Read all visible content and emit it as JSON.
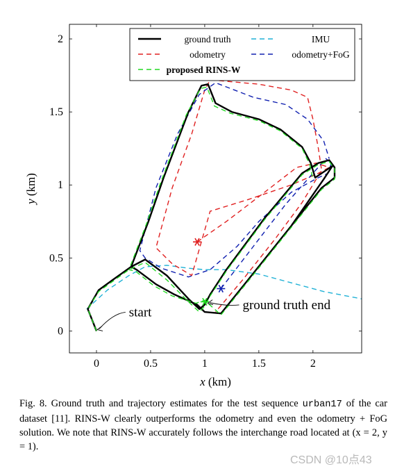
{
  "chart_data": {
    "type": "line",
    "xlabel": "x (km)",
    "ylabel": "y (km)",
    "xlim": [
      -0.25,
      2.45
    ],
    "ylim": [
      -0.15,
      2.1
    ],
    "x_ticks": [
      0,
      0.5,
      1,
      1.5,
      2
    ],
    "y_ticks": [
      0,
      0.5,
      1,
      1.5,
      2
    ],
    "x_tick_labels": [
      "0",
      "0.5",
      "1",
      "1.5",
      "2"
    ],
    "y_tick_labels": [
      "0",
      "0.5",
      "1",
      "1.5",
      "2"
    ],
    "grid": false,
    "legend_position": "top-right",
    "series": [
      {
        "name": "ground truth",
        "color": "#000000",
        "style": "solid",
        "points": [
          [
            0,
            0
          ],
          [
            -0.08,
            0.15
          ],
          [
            0.02,
            0.28
          ],
          [
            0.15,
            0.35
          ],
          [
            0.32,
            0.44
          ],
          [
            0.45,
            0.49
          ],
          [
            0.65,
            0.38
          ],
          [
            0.85,
            0.22
          ],
          [
            0.95,
            0.15
          ],
          [
            1.0,
            0.18
          ],
          [
            1.05,
            0.25
          ],
          [
            1.2,
            0.42
          ],
          [
            1.55,
            0.77
          ],
          [
            1.9,
            1.08
          ],
          [
            2.05,
            1.15
          ],
          [
            2.15,
            1.17
          ],
          [
            2.2,
            1.12
          ],
          [
            2.2,
            1.05
          ],
          [
            2.15,
            1.02
          ],
          [
            2.08,
            0.98
          ],
          [
            1.8,
            0.72
          ],
          [
            1.4,
            0.35
          ],
          [
            1.15,
            0.12
          ],
          [
            1.0,
            0.13
          ],
          [
            0.93,
            0.18
          ],
          [
            0.72,
            0.25
          ],
          [
            0.55,
            0.32
          ],
          [
            0.37,
            0.42
          ],
          [
            0.32,
            0.44
          ],
          [
            0.48,
            0.75
          ],
          [
            0.62,
            1.05
          ],
          [
            0.85,
            1.5
          ],
          [
            0.97,
            1.68
          ],
          [
            1.03,
            1.69
          ],
          [
            1.1,
            1.56
          ],
          [
            1.25,
            1.5
          ],
          [
            1.5,
            1.45
          ],
          [
            1.7,
            1.38
          ],
          [
            1.9,
            1.26
          ],
          [
            1.98,
            1.15
          ],
          [
            2.02,
            1.05
          ],
          [
            2.12,
            1.1
          ],
          [
            2.18,
            1.13
          ],
          [
            2.1,
            1.04
          ],
          [
            1.8,
            0.72
          ]
        ]
      },
      {
        "name": "IMU",
        "color": "#1fb1d6",
        "style": "dashed",
        "points": [
          [
            -0.09,
            0.15
          ],
          [
            0.1,
            0.28
          ],
          [
            0.3,
            0.38
          ],
          [
            0.45,
            0.44
          ],
          [
            0.65,
            0.45
          ],
          [
            0.85,
            0.43
          ],
          [
            1.0,
            0.42
          ],
          [
            1.2,
            0.42
          ],
          [
            1.5,
            0.39
          ],
          [
            1.8,
            0.33
          ],
          [
            2.1,
            0.27
          ],
          [
            2.45,
            0.22
          ]
        ]
      },
      {
        "name": "odometry",
        "color": "#e02020",
        "style": "dashed",
        "points": [
          [
            0.93,
            0.61
          ],
          [
            1.2,
            0.75
          ],
          [
            1.5,
            0.92
          ],
          [
            1.85,
            1.12
          ],
          [
            2.03,
            1.15
          ],
          [
            2.15,
            1.12
          ],
          [
            2.05,
            1.08
          ],
          [
            1.8,
            1.0
          ],
          [
            1.4,
            0.9
          ],
          [
            1.05,
            0.82
          ],
          [
            0.88,
            0.38
          ],
          [
            0.7,
            0.46
          ],
          [
            0.55,
            0.57
          ],
          [
            0.7,
            0.98
          ],
          [
            0.88,
            1.35
          ],
          [
            1.0,
            1.65
          ],
          [
            1.05,
            1.72
          ],
          [
            1.5,
            1.69
          ],
          [
            1.8,
            1.65
          ],
          [
            1.95,
            1.6
          ],
          [
            2.0,
            1.45
          ],
          [
            2.05,
            1.25
          ],
          [
            2.08,
            1.1
          ],
          [
            1.9,
            0.88
          ],
          [
            1.65,
            0.63
          ],
          [
            1.35,
            0.35
          ],
          [
            1.1,
            0.13
          ]
        ]
      },
      {
        "name": "odometry+FoG",
        "color": "#1020b0",
        "style": "dashed",
        "points": [
          [
            1.15,
            0.29
          ],
          [
            1.45,
            0.58
          ],
          [
            1.75,
            0.87
          ],
          [
            2.0,
            1.08
          ],
          [
            2.12,
            1.18
          ],
          [
            2.17,
            1.15
          ],
          [
            2.14,
            1.08
          ],
          [
            2.05,
            1.05
          ],
          [
            1.8,
            0.95
          ],
          [
            1.5,
            0.75
          ],
          [
            1.3,
            0.58
          ],
          [
            1.05,
            0.42
          ],
          [
            0.85,
            0.37
          ],
          [
            0.6,
            0.43
          ],
          [
            0.45,
            0.5
          ],
          [
            0.4,
            0.55
          ],
          [
            0.55,
            0.98
          ],
          [
            0.75,
            1.35
          ],
          [
            0.95,
            1.62
          ],
          [
            1.1,
            1.7
          ],
          [
            1.45,
            1.6
          ],
          [
            1.75,
            1.55
          ],
          [
            1.95,
            1.45
          ],
          [
            2.1,
            1.3
          ],
          [
            2.15,
            1.18
          ]
        ]
      },
      {
        "name": "proposed RINS-W",
        "color": "#22d822",
        "style": "dashed",
        "points": [
          [
            0,
            0
          ],
          [
            -0.08,
            0.15
          ],
          [
            0.02,
            0.27
          ],
          [
            0.15,
            0.34
          ],
          [
            0.3,
            0.42
          ],
          [
            0.45,
            0.47
          ],
          [
            0.65,
            0.35
          ],
          [
            0.85,
            0.2
          ],
          [
            0.95,
            0.13
          ],
          [
            1.0,
            0.17
          ],
          [
            1.05,
            0.24
          ],
          [
            1.2,
            0.41
          ],
          [
            1.55,
            0.76
          ],
          [
            1.9,
            1.07
          ],
          [
            2.05,
            1.14
          ],
          [
            2.15,
            1.16
          ],
          [
            2.2,
            1.11
          ],
          [
            2.2,
            1.04
          ],
          [
            2.15,
            1.01
          ],
          [
            2.08,
            0.97
          ],
          [
            1.8,
            0.71
          ],
          [
            1.4,
            0.34
          ],
          [
            1.15,
            0.11
          ],
          [
            1.0,
            0.21
          ],
          [
            0.92,
            0.19
          ],
          [
            0.7,
            0.24
          ],
          [
            0.53,
            0.31
          ],
          [
            0.36,
            0.41
          ],
          [
            0.3,
            0.42
          ],
          [
            0.46,
            0.73
          ],
          [
            0.6,
            1.03
          ],
          [
            0.83,
            1.48
          ],
          [
            0.96,
            1.66
          ],
          [
            1.02,
            1.67
          ],
          [
            1.09,
            1.54
          ],
          [
            1.24,
            1.49
          ],
          [
            1.5,
            1.44
          ],
          [
            1.7,
            1.37
          ],
          [
            1.9,
            1.25
          ],
          [
            1.97,
            1.14
          ],
          [
            2.0,
            1.04
          ]
        ]
      }
    ],
    "markers": [
      {
        "series": "odometry",
        "x": 0.93,
        "y": 0.61,
        "color": "#e02020"
      },
      {
        "series": "odometry+FoG",
        "x": 1.15,
        "y": 0.29,
        "color": "#1020b0"
      },
      {
        "series": "proposed RINS-W",
        "x": 1.0,
        "y": 0.2,
        "color": "#22d822"
      }
    ],
    "annotations": [
      {
        "text": "start",
        "x": 0.3,
        "y": 0.1,
        "arrow_to": [
          0.0,
          0.0
        ]
      },
      {
        "text": "ground truth end",
        "x": 1.35,
        "y": 0.15,
        "arrow_to": [
          1.02,
          0.18
        ]
      }
    ]
  },
  "caption": {
    "label": "Fig. 8.",
    "text_part1": "Ground truth and trajectory estimates for the test sequence ",
    "code": "urban17",
    "text_part2": " of the car dataset [11]. RINS-W clearly outperforms the odometry and even the odometry + FoG solution. We note that RINS-W accurately follows the interchange road located at (x = 2, y = 1)."
  },
  "watermark": "CSDN @10点43"
}
